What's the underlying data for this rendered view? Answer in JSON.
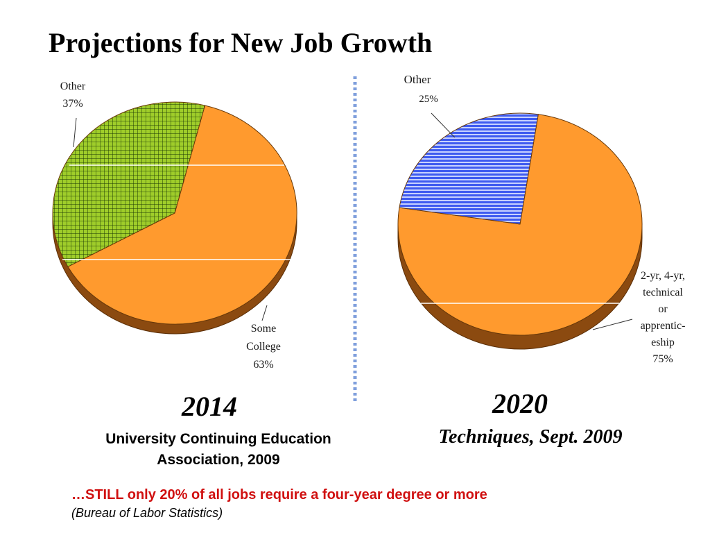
{
  "title": "Projections for New Job Growth",
  "colors": {
    "orange": "#ff9a2e",
    "orange_side": "#8b4a10",
    "green": "#9fcd2a",
    "green_grid": "#1e3a05",
    "blue": "#3f5bf0",
    "blue_stripe": "#c8d2ff",
    "divider": "#7f9fdc"
  },
  "chart_data": [
    {
      "type": "pie",
      "year": "2014",
      "source": "University Continuing Education Association, 2009",
      "slices": [
        {
          "label": "Some College",
          "value": 63,
          "value_label": "63%"
        },
        {
          "label": "Other",
          "value": 37,
          "value_label": "37%"
        }
      ]
    },
    {
      "type": "pie",
      "year": "2020",
      "source": "Techniques, Sept. 2009",
      "slices": [
        {
          "label": "2-yr, 4-yr, technical or apprentic-eship",
          "label_lines": [
            "2-yr, 4-yr,",
            "technical",
            "or",
            "apprentic-",
            "eship"
          ],
          "value": 75,
          "value_label": "75%"
        },
        {
          "label": "Other",
          "value": 25,
          "value_label": "25%"
        }
      ]
    }
  ],
  "footnote": {
    "main": "…STILL only 20% of all jobs require a four-year degree or more",
    "source": "(Bureau of Labor Statistics)"
  }
}
